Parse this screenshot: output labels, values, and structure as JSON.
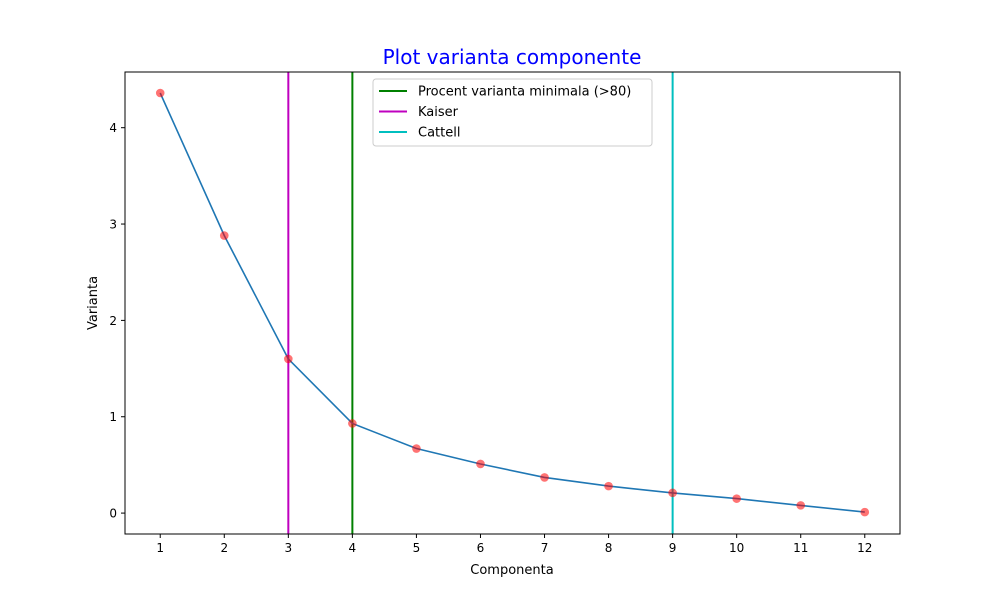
{
  "chart_data": {
    "type": "line",
    "title": "Plot varianta componente",
    "xlabel": "Componenta",
    "ylabel": "Varianta",
    "x": [
      1,
      2,
      3,
      4,
      5,
      6,
      7,
      8,
      9,
      10,
      11,
      12
    ],
    "x_ticks": [
      "1",
      "2",
      "3",
      "4",
      "5",
      "6",
      "7",
      "8",
      "9",
      "10",
      "11",
      "12"
    ],
    "y_ticks": [
      "0",
      "1",
      "2",
      "3",
      "4"
    ],
    "series": [
      {
        "values": [
          4.36,
          2.88,
          1.6,
          0.93,
          0.67,
          0.51,
          0.37,
          0.28,
          0.21,
          0.15,
          0.08,
          0.01
        ],
        "line_color": "#1f77b4",
        "marker_color": "#ff0000"
      }
    ],
    "vlines": [
      {
        "name": "Procent varianta minimala (>80)",
        "x": 4,
        "color": "#008000"
      },
      {
        "name": "Kaiser",
        "x": 3,
        "color": "#bf00bf"
      },
      {
        "name": "Cattell",
        "x": 9,
        "color": "#00bfbf"
      }
    ],
    "xlim": [
      0.45,
      12.55
    ],
    "ylim": [
      -0.217,
      4.578
    ],
    "grid": false,
    "legend_position": "top"
  },
  "colors": {
    "title": "#0000ff",
    "axis": "#000000"
  }
}
